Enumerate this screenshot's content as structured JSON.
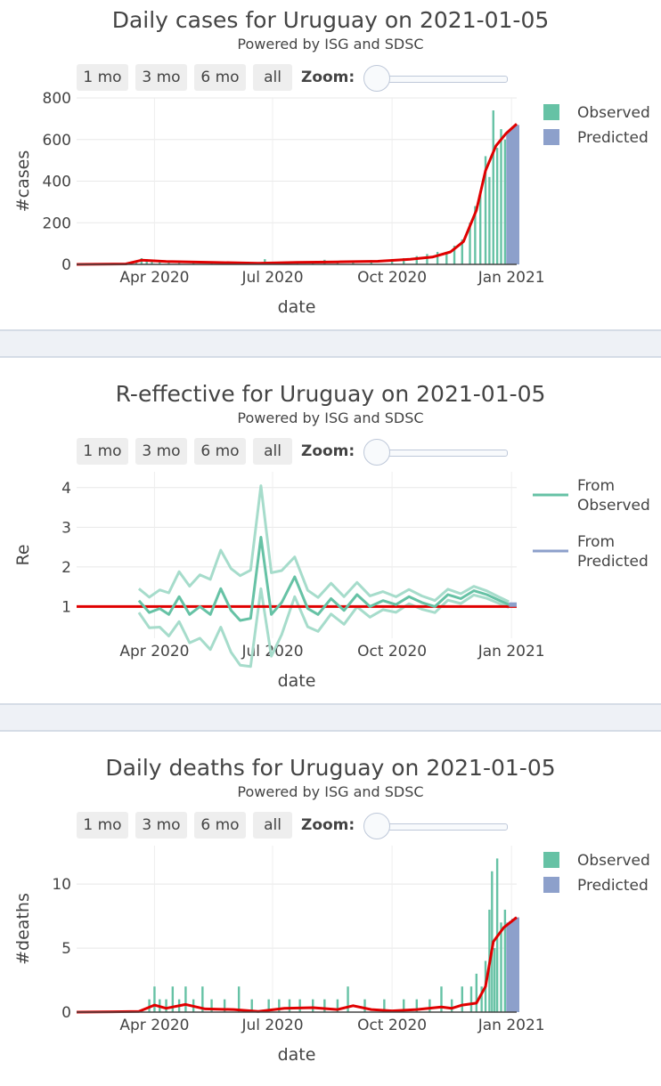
{
  "range_buttons": [
    "1 mo",
    "3 mo",
    "6 mo",
    "all"
  ],
  "zoom_label": "Zoom:",
  "colors": {
    "observed": "#66c2a5",
    "predicted": "#8da0cb",
    "trend": "#e00000",
    "band": "#a6dccb"
  },
  "panels": [
    {
      "title": "Daily cases for Uruguay on 2021-01-05",
      "subtitle": "Powered by ISG and SDSC",
      "chart_data": {
        "type": "bar",
        "title": "Daily cases for Uruguay on 2021-01-05",
        "xlabel": "date",
        "ylabel": "#cases",
        "xlim": [
          "2020-02-01",
          "2021-01-05"
        ],
        "ylim": [
          0,
          800
        ],
        "yticks": [
          0,
          200,
          400,
          600,
          800
        ],
        "xticks": [
          {
            "date": "2020-04-01",
            "label": "Apr 2020"
          },
          {
            "date": "2020-07-01",
            "label": "Jul 2020"
          },
          {
            "date": "2020-10-01",
            "label": "Oct 2020"
          },
          {
            "date": "2021-01-01",
            "label": "Jan 2021"
          }
        ],
        "legend": [
          {
            "name": "Observed",
            "symbol": "box",
            "color": "#66c2a5"
          },
          {
            "name": "Predicted",
            "symbol": "box",
            "color": "#8da0cb"
          }
        ],
        "legend_position": "right",
        "grid": true,
        "observed": [
          [
            "2020-03-14",
            4
          ],
          [
            "2020-03-18",
            15
          ],
          [
            "2020-03-22",
            30
          ],
          [
            "2020-03-26",
            25
          ],
          [
            "2020-03-30",
            18
          ],
          [
            "2020-04-05",
            12
          ],
          [
            "2020-04-12",
            10
          ],
          [
            "2020-04-20",
            8
          ],
          [
            "2020-05-01",
            8
          ],
          [
            "2020-05-15",
            6
          ],
          [
            "2020-06-01",
            5
          ],
          [
            "2020-06-15",
            4
          ],
          [
            "2020-06-25",
            25
          ],
          [
            "2020-07-05",
            12
          ],
          [
            "2020-07-20",
            8
          ],
          [
            "2020-08-01",
            10
          ],
          [
            "2020-08-10",
            22
          ],
          [
            "2020-08-20",
            14
          ],
          [
            "2020-09-01",
            10
          ],
          [
            "2020-09-15",
            20
          ],
          [
            "2020-10-01",
            18
          ],
          [
            "2020-10-10",
            30
          ],
          [
            "2020-10-20",
            40
          ],
          [
            "2020-10-28",
            50
          ],
          [
            "2020-11-05",
            60
          ],
          [
            "2020-11-12",
            55
          ],
          [
            "2020-11-18",
            90
          ],
          [
            "2020-11-24",
            120
          ],
          [
            "2020-11-30",
            200
          ],
          [
            "2020-12-04",
            280
          ],
          [
            "2020-12-08",
            350
          ],
          [
            "2020-12-12",
            520
          ],
          [
            "2020-12-15",
            420
          ],
          [
            "2020-12-18",
            740
          ],
          [
            "2020-12-21",
            560
          ],
          [
            "2020-12-24",
            650
          ],
          [
            "2020-12-27",
            600
          ],
          [
            "2020-12-29",
            520
          ]
        ],
        "predicted": [
          [
            "2020-12-30",
            640
          ],
          [
            "2021-01-01",
            650
          ],
          [
            "2021-01-03",
            660
          ],
          [
            "2021-01-05",
            670
          ]
        ],
        "trend": [
          [
            "2020-02-01",
            0
          ],
          [
            "2020-03-10",
            2
          ],
          [
            "2020-03-22",
            20
          ],
          [
            "2020-04-10",
            14
          ],
          [
            "2020-05-15",
            10
          ],
          [
            "2020-06-20",
            5
          ],
          [
            "2020-07-20",
            10
          ],
          [
            "2020-08-20",
            12
          ],
          [
            "2020-09-20",
            15
          ],
          [
            "2020-10-15",
            25
          ],
          [
            "2020-11-01",
            35
          ],
          [
            "2020-11-15",
            60
          ],
          [
            "2020-11-25",
            110
          ],
          [
            "2020-12-05",
            260
          ],
          [
            "2020-12-12",
            450
          ],
          [
            "2020-12-20",
            570
          ],
          [
            "2020-12-28",
            630
          ],
          [
            "2021-01-05",
            675
          ]
        ]
      }
    },
    {
      "title": "R-effective for Uruguay on 2021-01-05",
      "subtitle": "Powered by ISG and SDSC",
      "chart_data": {
        "type": "line",
        "title": "R-effective for Uruguay on 2021-01-05",
        "xlabel": "date",
        "ylabel": "Re",
        "xlim": [
          "2020-02-01",
          "2021-01-05"
        ],
        "ylim": [
          0.2,
          4.4
        ],
        "yticks": [
          1,
          2,
          3,
          4
        ],
        "xticks": [
          {
            "date": "2020-04-01",
            "label": "Apr 2020"
          },
          {
            "date": "2020-07-01",
            "label": "Jul 2020"
          },
          {
            "date": "2020-10-01",
            "label": "Oct 2020"
          },
          {
            "date": "2021-01-01",
            "label": "Jan 2021"
          }
        ],
        "legend": [
          {
            "name": "From Observed",
            "lines": [
              "From",
              "Observed"
            ],
            "symbol": "line",
            "color": "#66c2a5"
          },
          {
            "name": "From Predicted",
            "lines": [
              "From",
              "Predicted"
            ],
            "symbol": "line",
            "color": "#8da0cb"
          }
        ],
        "legend_position": "right",
        "grid": true,
        "reference_line": 1,
        "series": [
          {
            "name": "From Observed",
            "points": [
              [
                "2020-03-20",
                1.15
              ],
              [
                "2020-03-28",
                0.85
              ],
              [
                "2020-04-05",
                0.95
              ],
              [
                "2020-04-12",
                0.8
              ],
              [
                "2020-04-20",
                1.25
              ],
              [
                "2020-04-28",
                0.8
              ],
              [
                "2020-05-06",
                1.0
              ],
              [
                "2020-05-14",
                0.8
              ],
              [
                "2020-05-22",
                1.45
              ],
              [
                "2020-05-30",
                0.9
              ],
              [
                "2020-06-06",
                0.65
              ],
              [
                "2020-06-14",
                0.7
              ],
              [
                "2020-06-22",
                2.75
              ],
              [
                "2020-06-30",
                0.8
              ],
              [
                "2020-07-08",
                1.1
              ],
              [
                "2020-07-18",
                1.75
              ],
              [
                "2020-07-28",
                0.95
              ],
              [
                "2020-08-05",
                0.8
              ],
              [
                "2020-08-15",
                1.2
              ],
              [
                "2020-08-25",
                0.9
              ],
              [
                "2020-09-04",
                1.3
              ],
              [
                "2020-09-14",
                1.0
              ],
              [
                "2020-09-24",
                1.15
              ],
              [
                "2020-10-04",
                1.05
              ],
              [
                "2020-10-14",
                1.25
              ],
              [
                "2020-10-24",
                1.1
              ],
              [
                "2020-11-03",
                1.0
              ],
              [
                "2020-11-13",
                1.3
              ],
              [
                "2020-11-23",
                1.2
              ],
              [
                "2020-12-03",
                1.4
              ],
              [
                "2020-12-13",
                1.3
              ],
              [
                "2020-12-23",
                1.15
              ],
              [
                "2020-12-30",
                1.05
              ]
            ]
          },
          {
            "name": "From Predicted",
            "points": [
              [
                "2020-12-30",
                1.05
              ],
              [
                "2021-01-05",
                1.05
              ]
            ]
          }
        ],
        "band_offset": [
          [
            "2020-03-20",
            0.3
          ],
          [
            "2020-06-22",
            1.3
          ],
          [
            "2020-07-18",
            0.5
          ],
          [
            "2020-10-01",
            0.2
          ],
          [
            "2020-12-30",
            0.07
          ]
        ]
      }
    },
    {
      "title": "Daily deaths for Uruguay on 2021-01-05",
      "subtitle": "Powered by ISG and SDSC",
      "chart_data": {
        "type": "bar",
        "title": "Daily deaths for Uruguay on 2021-01-05",
        "xlabel": "date",
        "ylabel": "#deaths",
        "xlim": [
          "2020-02-01",
          "2021-01-05"
        ],
        "ylim": [
          0,
          13
        ],
        "yticks": [
          0,
          5,
          10
        ],
        "xticks": [
          {
            "date": "2020-04-01",
            "label": "Apr 2020"
          },
          {
            "date": "2020-07-01",
            "label": "Jul 2020"
          },
          {
            "date": "2020-10-01",
            "label": "Oct 2020"
          },
          {
            "date": "2021-01-01",
            "label": "Jan 2021"
          }
        ],
        "legend": [
          {
            "name": "Observed",
            "symbol": "box",
            "color": "#66c2a5"
          },
          {
            "name": "Predicted",
            "symbol": "box",
            "color": "#8da0cb"
          }
        ],
        "legend_position": "right",
        "grid": true,
        "observed": [
          [
            "2020-03-28",
            1
          ],
          [
            "2020-04-01",
            2
          ],
          [
            "2020-04-05",
            1
          ],
          [
            "2020-04-10",
            1
          ],
          [
            "2020-04-15",
            2
          ],
          [
            "2020-04-20",
            1
          ],
          [
            "2020-04-25",
            2
          ],
          [
            "2020-05-01",
            1
          ],
          [
            "2020-05-08",
            2
          ],
          [
            "2020-05-15",
            1
          ],
          [
            "2020-05-25",
            1
          ],
          [
            "2020-06-05",
            2
          ],
          [
            "2020-06-15",
            1
          ],
          [
            "2020-06-28",
            1
          ],
          [
            "2020-07-06",
            1
          ],
          [
            "2020-07-14",
            1
          ],
          [
            "2020-07-22",
            1
          ],
          [
            "2020-08-01",
            1
          ],
          [
            "2020-08-10",
            1
          ],
          [
            "2020-08-20",
            1
          ],
          [
            "2020-08-28",
            2
          ],
          [
            "2020-09-10",
            1
          ],
          [
            "2020-09-25",
            1
          ],
          [
            "2020-10-10",
            1
          ],
          [
            "2020-10-20",
            1
          ],
          [
            "2020-10-30",
            1
          ],
          [
            "2020-11-08",
            2
          ],
          [
            "2020-11-16",
            1
          ],
          [
            "2020-11-24",
            2
          ],
          [
            "2020-12-01",
            2
          ],
          [
            "2020-12-05",
            3
          ],
          [
            "2020-12-09",
            2
          ],
          [
            "2020-12-12",
            4
          ],
          [
            "2020-12-15",
            8
          ],
          [
            "2020-12-17",
            11
          ],
          [
            "2020-12-19",
            5
          ],
          [
            "2020-12-21",
            12
          ],
          [
            "2020-12-24",
            7
          ],
          [
            "2020-12-27",
            8
          ],
          [
            "2020-12-29",
            6
          ]
        ],
        "predicted": [
          [
            "2020-12-30",
            7
          ],
          [
            "2021-01-01",
            7.1
          ],
          [
            "2021-01-03",
            7.3
          ],
          [
            "2021-01-05",
            7.4
          ]
        ],
        "trend": [
          [
            "2020-02-01",
            0
          ],
          [
            "2020-03-20",
            0.05
          ],
          [
            "2020-04-01",
            0.55
          ],
          [
            "2020-04-10",
            0.3
          ],
          [
            "2020-04-25",
            0.6
          ],
          [
            "2020-05-10",
            0.25
          ],
          [
            "2020-06-01",
            0.2
          ],
          [
            "2020-06-20",
            0.05
          ],
          [
            "2020-07-10",
            0.3
          ],
          [
            "2020-08-01",
            0.35
          ],
          [
            "2020-08-20",
            0.2
          ],
          [
            "2020-09-01",
            0.5
          ],
          [
            "2020-09-15",
            0.2
          ],
          [
            "2020-10-01",
            0.1
          ],
          [
            "2020-10-20",
            0.2
          ],
          [
            "2020-11-08",
            0.4
          ],
          [
            "2020-11-16",
            0.3
          ],
          [
            "2020-11-24",
            0.55
          ],
          [
            "2020-12-05",
            0.7
          ],
          [
            "2020-12-12",
            2.0
          ],
          [
            "2020-12-18",
            5.5
          ],
          [
            "2020-12-26",
            6.6
          ],
          [
            "2021-01-05",
            7.4
          ]
        ]
      }
    }
  ],
  "dividers": 2
}
